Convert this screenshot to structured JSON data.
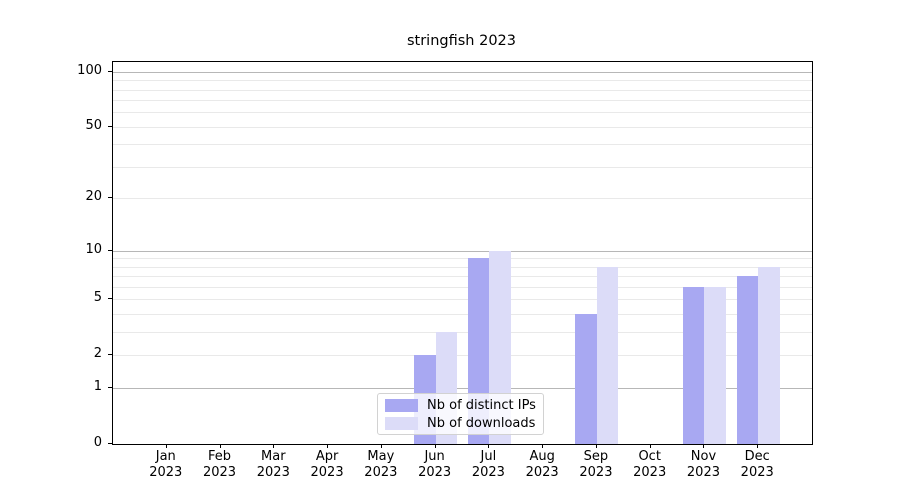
{
  "chart_data": {
    "type": "bar",
    "title": "stringfish 2023",
    "year_label": "2023",
    "months": [
      "Jan",
      "Feb",
      "Mar",
      "Apr",
      "May",
      "Jun",
      "Jul",
      "Aug",
      "Sep",
      "Oct",
      "Nov",
      "Dec"
    ],
    "series": [
      {
        "name": "Nb of distinct IPs",
        "color": "#a8a8f2",
        "values": [
          0,
          0,
          0,
          0,
          0,
          2,
          9,
          0,
          4,
          0,
          6,
          7
        ]
      },
      {
        "name": "Nb of downloads",
        "color": "#dcdcf8",
        "values": [
          0,
          0,
          0,
          0,
          0,
          3,
          10,
          0,
          8,
          0,
          6,
          8
        ]
      }
    ],
    "y_ticks": [
      0,
      1,
      2,
      5,
      10,
      20,
      50,
      100
    ],
    "grid_major": [
      1,
      10,
      100
    ],
    "grid_minor": [
      2,
      3,
      4,
      5,
      6,
      7,
      8,
      9,
      20,
      30,
      40,
      50,
      60,
      70,
      80,
      90
    ],
    "y_scale": "log1p",
    "ylim": [
      0,
      113
    ],
    "legend_position": "lower center",
    "colors": {
      "grid_major": "#b7b7b7",
      "grid_minor": "#e9e9e9",
      "axis": "#000000",
      "background": "#ffffff"
    }
  }
}
